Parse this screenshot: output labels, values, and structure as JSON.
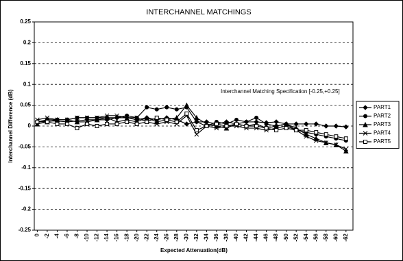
{
  "chart_data": {
    "type": "line",
    "title": "INTERCHANNEL MATCHINGS",
    "x_label": "Expected Attenuation(dB)",
    "y_label": "Interchannel Difference (dB)",
    "annotation": "Interchannel Matching Specification [-0.25,+0.25]",
    "x": [
      0,
      -2,
      -4,
      -6,
      -8,
      -10,
      -12,
      -14,
      -16,
      -18,
      -20,
      -22,
      -24,
      -26,
      -28,
      -30,
      -32,
      -34,
      -36,
      -38,
      -40,
      -42,
      -44,
      -46,
      -48,
      -50,
      -52,
      -54,
      -56,
      -58,
      -60,
      -62
    ],
    "xlim": [
      0.6,
      -63.4
    ],
    "xticks": [
      0,
      -2,
      -4,
      -6,
      -8,
      -10,
      -12,
      -14,
      -16,
      -18,
      -20,
      -22,
      -24,
      -26,
      -28,
      -30,
      -32,
      -34,
      -36,
      -38,
      -40,
      -42,
      -44,
      -46,
      -48,
      -50,
      -52,
      -54,
      -56,
      -58,
      -60,
      -62
    ],
    "ylim": [
      -0.25,
      0.25
    ],
    "yticks": [
      0.25,
      0.2,
      0.15,
      0.1,
      0.05,
      0,
      -0.05,
      -0.1,
      -0.15,
      -0.2,
      -0.25
    ],
    "grid": true,
    "legend": "right",
    "series": [
      {
        "name": "PART1",
        "color": "#000000",
        "marker": "diamond",
        "values": [
          0.01,
          0.012,
          0.012,
          0.01,
          0.012,
          0.015,
          0.015,
          0.015,
          0.02,
          0.02,
          0.015,
          0.02,
          0.015,
          0.02,
          0.015,
          0.005,
          0.01,
          0.01,
          0.005,
          0.01,
          0.005,
          0.01,
          0.01,
          0.008,
          0.01,
          0.005,
          0.005,
          0.005,
          0.005,
          0,
          0,
          -0.002
        ]
      },
      {
        "name": "PART2",
        "color": "#000000",
        "marker": "circle",
        "values": [
          0.01,
          0.015,
          0.015,
          0.015,
          0.02,
          0.02,
          0.02,
          0.02,
          0.02,
          0.025,
          0.02,
          0.045,
          0.04,
          0.045,
          0.04,
          0.045,
          0.01,
          0,
          0.01,
          0.005,
          0.015,
          0.01,
          0.02,
          0.005,
          0,
          0.005,
          -0.01,
          -0.015,
          -0.02,
          -0.025,
          -0.03,
          -0.035
        ]
      },
      {
        "name": "PART3",
        "color": "#000000",
        "marker": "triangle",
        "values": [
          0.005,
          0.01,
          0.015,
          0.015,
          0.01,
          0.01,
          0.015,
          0.02,
          0.01,
          0.015,
          0.01,
          0.02,
          0.01,
          0.015,
          0.02,
          0.05,
          0.02,
          0.005,
          0,
          -0.005,
          0.005,
          0,
          0.005,
          -0.005,
          0,
          0.005,
          -0.005,
          -0.02,
          -0.03,
          -0.04,
          -0.045,
          -0.06
        ]
      },
      {
        "name": "PART4",
        "color": "#000000",
        "marker": "x",
        "values": [
          0.015,
          0.02,
          0.015,
          0.015,
          0.02,
          0.02,
          0.02,
          0.025,
          0.025,
          0.02,
          0.02,
          0.01,
          0.005,
          0.01,
          0.005,
          0.025,
          -0.02,
          0,
          -0.005,
          0,
          0,
          -0.005,
          -0.005,
          -0.01,
          -0.005,
          0,
          -0.01,
          -0.025,
          -0.035,
          -0.04,
          -0.045,
          -0.055
        ]
      },
      {
        "name": "PART5",
        "color": "#000000",
        "marker": "square",
        "values": [
          0.01,
          0.01,
          0.005,
          0.005,
          -0.005,
          0.005,
          0,
          0.005,
          0.005,
          0.01,
          0.005,
          0.01,
          0.02,
          0.015,
          0.01,
          0.03,
          -0.01,
          0,
          0.005,
          0,
          0.005,
          0,
          0,
          -0.005,
          -0.01,
          -0.005,
          -0.01,
          -0.01,
          -0.015,
          -0.02,
          -0.025,
          -0.03
        ]
      }
    ]
  }
}
